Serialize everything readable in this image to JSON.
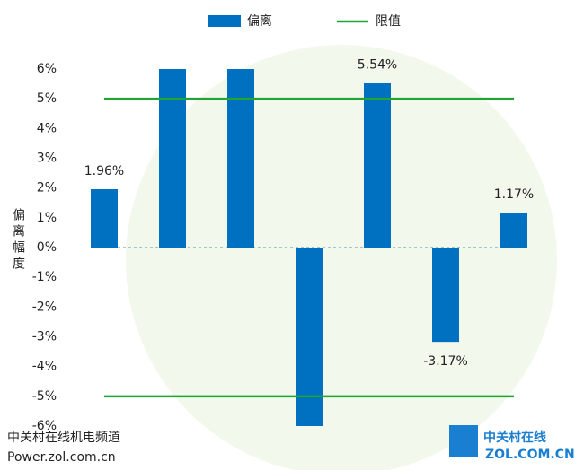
{
  "chart_data": {
    "type": "bar",
    "y_label": "偏离幅度",
    "categories": [
      null,
      null,
      null,
      null,
      null,
      null,
      null
    ],
    "series": [
      {
        "name": "偏离",
        "color": "#0070c0",
        "values": [
          1.96,
          6,
          6,
          -6,
          5.54,
          -3.17,
          1.17
        ],
        "value_labels": [
          "1.96%",
          null,
          null,
          null,
          "5.54%",
          "-3.17%",
          "1.17%"
        ]
      }
    ],
    "limits": {
      "name": "限值",
      "color": "#1fa532",
      "values": [
        5,
        -5
      ]
    },
    "ylim": [
      -6,
      6
    ],
    "yticks": [
      {
        "value": -6,
        "label": "-6%"
      },
      {
        "value": -5,
        "label": "-5%"
      },
      {
        "value": -4,
        "label": "-4%"
      },
      {
        "value": -3,
        "label": "-3%"
      },
      {
        "value": -2,
        "label": "-2%"
      },
      {
        "value": -1,
        "label": "-1%"
      },
      {
        "value": 0,
        "label": "0%"
      },
      {
        "value": 1,
        "label": "1%"
      },
      {
        "value": 2,
        "label": "2%"
      },
      {
        "value": 3,
        "label": "3%"
      },
      {
        "value": 4,
        "label": "4%"
      },
      {
        "value": 5,
        "label": "5%"
      },
      {
        "value": 6,
        "label": "6%"
      }
    ],
    "watermark": {
      "channel": "中关村在线机电频道",
      "url": "Power.zol.com.cn",
      "brand": "中关村在线",
      "brand_url": "ZOL.COM.CN"
    }
  }
}
